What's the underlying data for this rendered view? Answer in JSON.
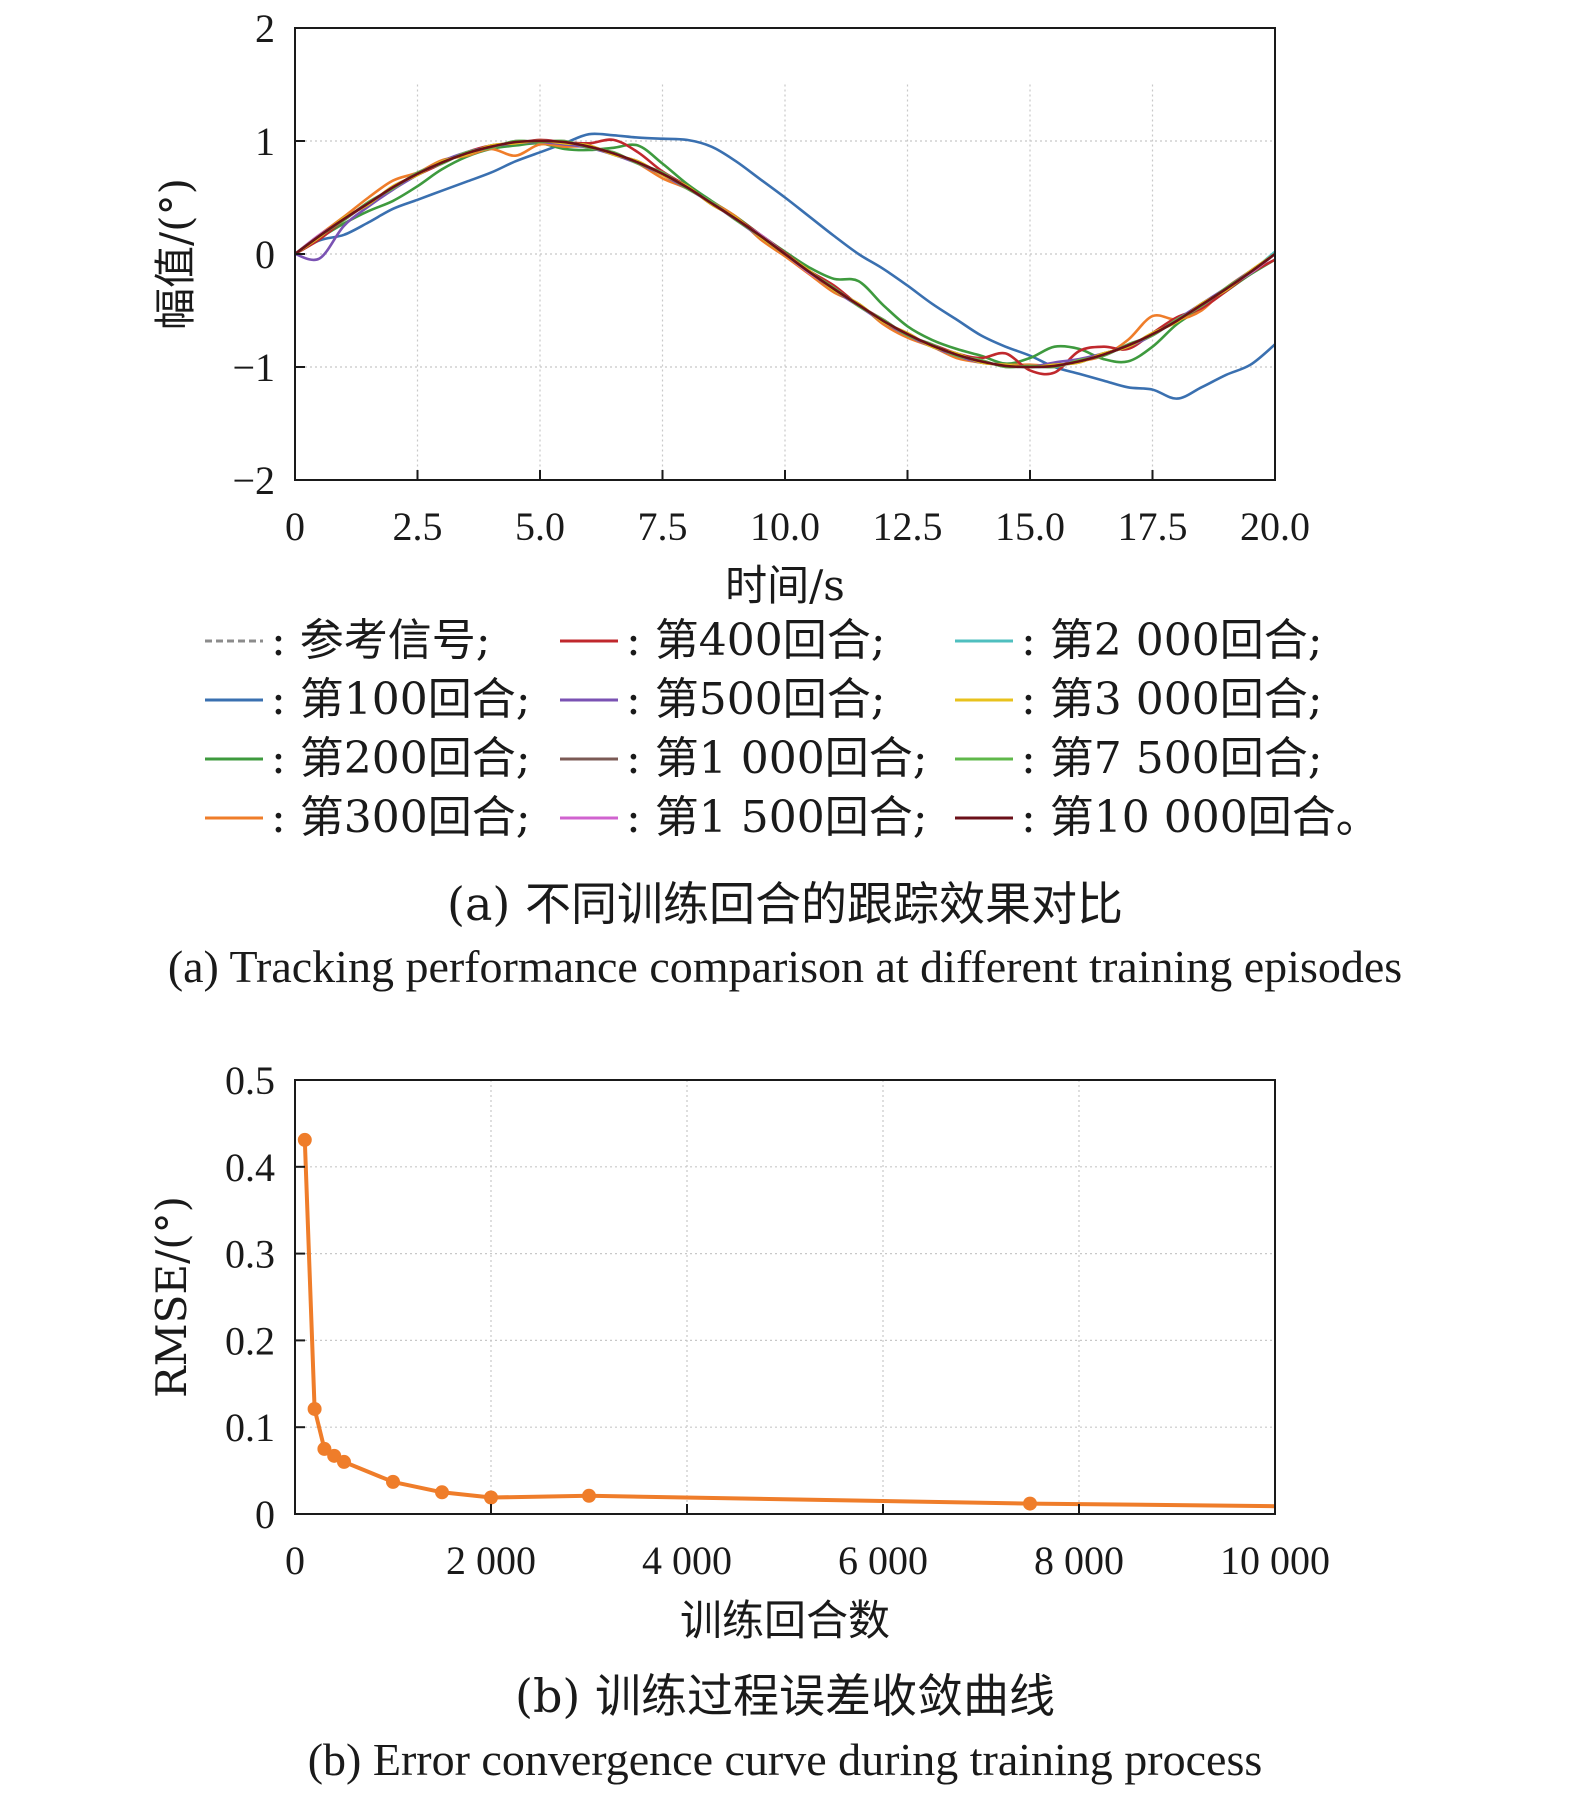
{
  "chart_data": [
    {
      "type": "line",
      "panel": "a",
      "xlabel": "时间/s",
      "ylabel": "幅值/(°)",
      "xlim": [
        0,
        20
      ],
      "ylim": [
        -2,
        2
      ],
      "xticks": [
        "0",
        "2.5",
        "5.0",
        "7.5",
        "10.0",
        "12.5",
        "15.0",
        "17.5",
        "20.0"
      ],
      "yticks": [
        "2",
        "1",
        "0",
        "−1",
        "−2"
      ],
      "grid": true,
      "x": [
        0,
        0.5,
        1,
        1.5,
        2,
        2.5,
        3,
        3.5,
        4,
        4.5,
        5,
        5.5,
        6,
        6.5,
        7,
        7.5,
        8,
        8.5,
        9,
        9.5,
        10,
        10.5,
        11,
        11.5,
        12,
        12.5,
        13,
        13.5,
        14,
        14.5,
        15,
        15.5,
        16,
        16.5,
        17,
        17.5,
        18,
        18.5,
        19,
        19.5,
        20
      ],
      "series": [
        {
          "name": "参考信号",
          "color": "#8c8c8c",
          "dash": true,
          "values": [
            0,
            0.16,
            0.31,
            0.45,
            0.59,
            0.71,
            0.81,
            0.89,
            0.95,
            0.99,
            1.0,
            0.99,
            0.95,
            0.89,
            0.81,
            0.71,
            0.59,
            0.45,
            0.31,
            0.16,
            0,
            -0.16,
            -0.31,
            -0.45,
            -0.59,
            -0.71,
            -0.81,
            -0.89,
            -0.95,
            -0.99,
            -1.0,
            -0.99,
            -0.95,
            -0.89,
            -0.81,
            -0.71,
            -0.59,
            -0.45,
            -0.31,
            -0.16,
            0
          ]
        },
        {
          "name": "第100回合",
          "color": "#3a70b0",
          "values": [
            0,
            0.12,
            0.17,
            0.28,
            0.4,
            0.48,
            0.56,
            0.64,
            0.72,
            0.82,
            0.9,
            0.98,
            1.06,
            1.05,
            1.03,
            1.02,
            1.01,
            0.95,
            0.82,
            0.66,
            0.5,
            0.33,
            0.16,
            0.0,
            -0.13,
            -0.28,
            -0.44,
            -0.58,
            -0.72,
            -0.82,
            -0.9,
            -1.0,
            -1.06,
            -1.12,
            -1.18,
            -1.2,
            -1.28,
            -1.18,
            -1.07,
            -0.98,
            -0.8
          ]
        },
        {
          "name": "第200回合",
          "color": "#3e9a3e",
          "values": [
            0,
            0.14,
            0.27,
            0.38,
            0.47,
            0.6,
            0.75,
            0.86,
            0.93,
            0.96,
            0.98,
            0.93,
            0.92,
            0.94,
            0.96,
            0.8,
            0.62,
            0.47,
            0.33,
            0.17,
            0.02,
            -0.12,
            -0.22,
            -0.24,
            -0.45,
            -0.64,
            -0.76,
            -0.84,
            -0.9,
            -0.97,
            -0.92,
            -0.82,
            -0.84,
            -0.93,
            -0.95,
            -0.82,
            -0.62,
            -0.48,
            -0.33,
            -0.18,
            -0.05
          ]
        },
        {
          "name": "第300回合",
          "color": "#ef7d2a",
          "values": [
            0,
            0.17,
            0.33,
            0.5,
            0.65,
            0.72,
            0.83,
            0.87,
            0.93,
            0.87,
            0.97,
            0.95,
            0.95,
            0.89,
            0.8,
            0.67,
            0.58,
            0.46,
            0.33,
            0.13,
            -0.02,
            -0.18,
            -0.34,
            -0.44,
            -0.62,
            -0.74,
            -0.82,
            -0.92,
            -0.96,
            -0.98,
            -0.98,
            -0.99,
            -0.95,
            -0.9,
            -0.76,
            -0.55,
            -0.58,
            -0.5,
            -0.3,
            -0.15,
            0
          ]
        },
        {
          "name": "第400回合",
          "color": "#c0282d",
          "values": [
            0,
            0.13,
            0.3,
            0.45,
            0.58,
            0.7,
            0.8,
            0.9,
            0.96,
            0.98,
            1.01,
            0.99,
            0.98,
            1.01,
            0.9,
            0.73,
            0.6,
            0.44,
            0.32,
            0.17,
            0.01,
            -0.15,
            -0.28,
            -0.45,
            -0.58,
            -0.72,
            -0.8,
            -0.88,
            -0.92,
            -0.88,
            -1.03,
            -1.05,
            -0.86,
            -0.82,
            -0.84,
            -0.7,
            -0.56,
            -0.48,
            -0.33,
            -0.17,
            -0.05
          ]
        },
        {
          "name": "第500回合",
          "color": "#7a52b3",
          "values": [
            0,
            -0.04,
            0.25,
            0.42,
            0.57,
            0.7,
            0.82,
            0.9,
            0.95,
            0.98,
            0.99,
            0.97,
            0.94,
            0.88,
            0.8,
            0.7,
            0.58,
            0.45,
            0.3,
            0.15,
            0.0,
            -0.16,
            -0.32,
            -0.46,
            -0.6,
            -0.72,
            -0.82,
            -0.9,
            -0.96,
            -0.98,
            -1.0,
            -0.96,
            -0.93,
            -0.88,
            -0.82,
            -0.72,
            -0.58,
            -0.44,
            -0.3,
            -0.15,
            0
          ]
        },
        {
          "name": "第1 000回合",
          "color": "#7b5a55",
          "values": [
            0,
            0.15,
            0.32,
            0.44,
            0.6,
            0.7,
            0.82,
            0.88,
            0.96,
            0.98,
            1.0,
            0.98,
            0.96,
            0.88,
            0.82,
            0.7,
            0.6,
            0.44,
            0.32,
            0.15,
            0.0,
            -0.15,
            -0.32,
            -0.44,
            -0.6,
            -0.7,
            -0.82,
            -0.88,
            -0.96,
            -0.98,
            -1.0,
            -0.98,
            -0.96,
            -0.88,
            -0.82,
            -0.7,
            -0.6,
            -0.44,
            -0.32,
            -0.15,
            0
          ]
        },
        {
          "name": "第1 500回合",
          "color": "#d063cf",
          "values": [
            0,
            0.17,
            0.3,
            0.46,
            0.58,
            0.72,
            0.8,
            0.9,
            0.94,
            1.0,
            0.99,
            1.0,
            0.94,
            0.9,
            0.8,
            0.72,
            0.58,
            0.46,
            0.3,
            0.17,
            0.0,
            -0.17,
            -0.3,
            -0.46,
            -0.58,
            -0.72,
            -0.8,
            -0.9,
            -0.94,
            -1.0,
            -0.99,
            -1.0,
            -0.94,
            -0.9,
            -0.8,
            -0.72,
            -0.58,
            -0.46,
            -0.3,
            -0.17,
            0
          ]
        },
        {
          "name": "第2 000回合",
          "color": "#4fbfbf",
          "values": [
            0,
            0.16,
            0.31,
            0.45,
            0.59,
            0.71,
            0.81,
            0.89,
            0.95,
            0.99,
            1.0,
            0.99,
            0.95,
            0.89,
            0.81,
            0.71,
            0.59,
            0.45,
            0.31,
            0.16,
            0,
            -0.16,
            -0.31,
            -0.45,
            -0.59,
            -0.71,
            -0.81,
            -0.89,
            -0.95,
            -0.99,
            -1.0,
            -0.99,
            -0.95,
            -0.89,
            -0.81,
            -0.71,
            -0.59,
            -0.45,
            -0.31,
            -0.16,
            0.02
          ]
        },
        {
          "name": "第3 000回合",
          "color": "#e8c21c",
          "values": [
            0,
            0.15,
            0.32,
            0.44,
            0.6,
            0.7,
            0.82,
            0.88,
            0.96,
            0.98,
            1.0,
            0.98,
            0.96,
            0.88,
            0.82,
            0.7,
            0.6,
            0.44,
            0.32,
            0.15,
            0.0,
            -0.15,
            -0.32,
            -0.44,
            -0.6,
            -0.7,
            -0.82,
            -0.88,
            -0.96,
            -0.98,
            -1.0,
            -0.98,
            -0.96,
            -0.88,
            -0.82,
            -0.7,
            -0.6,
            -0.44,
            -0.32,
            -0.15,
            0
          ]
        },
        {
          "name": "第7 500回合",
          "color": "#5fb84a",
          "values": [
            0,
            0.16,
            0.3,
            0.46,
            0.58,
            0.72,
            0.8,
            0.9,
            0.94,
            1.0,
            0.99,
            1.0,
            0.94,
            0.9,
            0.8,
            0.72,
            0.58,
            0.46,
            0.3,
            0.16,
            0.0,
            -0.16,
            -0.3,
            -0.46,
            -0.58,
            -0.72,
            -0.8,
            -0.9,
            -0.94,
            -1.0,
            -0.99,
            -1.0,
            -0.94,
            -0.9,
            -0.8,
            -0.72,
            -0.58,
            -0.46,
            -0.3,
            -0.16,
            0
          ]
        },
        {
          "name": "第10 000回合",
          "color": "#6b1019",
          "values": [
            0,
            0.16,
            0.31,
            0.45,
            0.59,
            0.71,
            0.81,
            0.89,
            0.95,
            0.99,
            1.0,
            0.99,
            0.95,
            0.89,
            0.81,
            0.71,
            0.59,
            0.45,
            0.31,
            0.16,
            0,
            -0.16,
            -0.31,
            -0.45,
            -0.59,
            -0.71,
            -0.81,
            -0.89,
            -0.95,
            -0.99,
            -1.0,
            -0.99,
            -0.95,
            -0.89,
            -0.81,
            -0.71,
            -0.59,
            -0.45,
            -0.31,
            -0.16,
            0
          ]
        }
      ],
      "caption_cn": "(a) 不同训练回合的跟踪效果对比",
      "caption_en": "(a) Tracking performance comparison at different training episodes"
    },
    {
      "type": "line",
      "panel": "b",
      "xlabel": "训练回合数",
      "ylabel": "RMSE/(°)",
      "xlim": [
        0,
        10000
      ],
      "ylim": [
        0,
        0.5
      ],
      "xticks": [
        "0",
        "2 000",
        "4 000",
        "6 000",
        "8 000",
        "10 000"
      ],
      "yticks": [
        "0.5",
        "0.4",
        "0.3",
        "0.2",
        "0.1",
        "0"
      ],
      "grid": true,
      "series": [
        {
          "color": "#ef7d2a",
          "x": [
            100,
            200,
            300,
            400,
            500,
            1000,
            1500,
            2000,
            3000,
            7500,
            10000
          ],
          "values": [
            0.431,
            0.121,
            0.075,
            0.067,
            0.06,
            0.037,
            0.025,
            0.019,
            0.021,
            0.012,
            0.009
          ]
        }
      ],
      "caption_cn": "(b) 训练过程误差收敛曲线",
      "caption_en": "(b) Error convergence curve during training process"
    }
  ],
  "legend": [
    {
      "label": ": 参考信号;",
      "color": "#8c8c8c",
      "dash": true
    },
    {
      "label": ": 第400回合;",
      "color": "#c0282d"
    },
    {
      "label": ": 第2 000回合;",
      "color": "#4fbfbf"
    },
    {
      "label": ": 第100回合;",
      "color": "#3a70b0"
    },
    {
      "label": ": 第500回合;",
      "color": "#7a52b3"
    },
    {
      "label": ": 第3 000回合;",
      "color": "#e8c21c"
    },
    {
      "label": ": 第200回合;",
      "color": "#3e9a3e"
    },
    {
      "label": ": 第1 000回合;",
      "color": "#7b5a55"
    },
    {
      "label": ": 第7 500回合;",
      "color": "#5fb84a"
    },
    {
      "label": ": 第300回合;",
      "color": "#ef7d2a"
    },
    {
      "label": ": 第1 500回合;",
      "color": "#d063cf"
    },
    {
      "label": ": 第10 000回合。",
      "color": "#6b1019"
    }
  ]
}
